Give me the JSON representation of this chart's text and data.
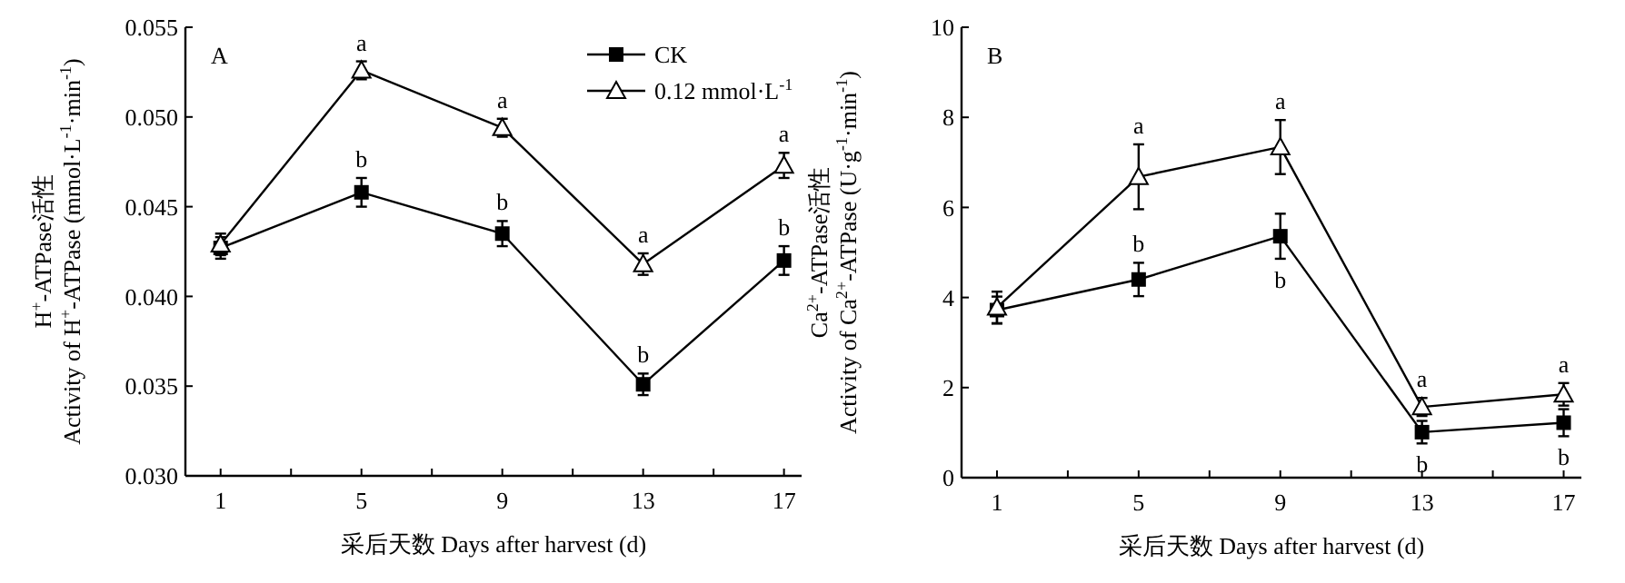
{
  "chart_data": [
    {
      "type": "line",
      "xlabel": "采后天数 Days after harvest (d)",
      "ylabel": "H$^{+}$-ATPase活性\nActivity of H$^{+}$-ATPase (mmol·L$^{-1}$·min$^{-1}$)",
      "x": [
        1,
        5,
        9,
        13,
        17
      ],
      "xlim": [
        0,
        17.5
      ],
      "xticks": [
        1,
        {
          "value": 3,
          "label": null
        },
        5,
        {
          "value": 7,
          "label": null
        },
        9,
        {
          "value": 11,
          "label": null
        },
        13,
        {
          "value": 15,
          "label": null
        },
        17
      ],
      "ylim": [
        0.03,
        0.055
      ],
      "yticks": [
        {
          "value": 0.03,
          "label": "0.030"
        },
        {
          "value": 0.035,
          "label": "0.035"
        },
        {
          "value": 0.04,
          "label": "0.040"
        },
        {
          "value": 0.045,
          "label": "0.045"
        },
        {
          "value": 0.05,
          "label": "0.050"
        },
        {
          "value": 0.055,
          "label": "0.055"
        }
      ],
      "grid": false,
      "legend": "top right",
      "series": [
        {
          "name": "CK",
          "color": "#000000",
          "marker": "square",
          "values": [
            0.0427,
            0.0458,
            0.0435,
            0.0351,
            0.042
          ],
          "errors": [
            0.0006,
            0.0008,
            0.0007,
            0.0006,
            0.0008
          ]
        },
        {
          "name": "0.12 mmol·L$^{-1}$",
          "color": "#000000",
          "marker": "triangle",
          "values": [
            0.0429,
            0.0526,
            0.0494,
            0.0418,
            0.0473
          ],
          "errors": [
            0.0006,
            0.0005,
            0.0005,
            0.0006,
            0.0007
          ]
        }
      ],
      "annotations": [
        "A",
        {
          "text": "b",
          "x": 5,
          "y": 0.0458
        },
        {
          "text": "a",
          "x": 5,
          "y": 0.0526
        },
        {
          "text": "b",
          "x": 9,
          "y": 0.0435
        },
        {
          "text": "a",
          "x": 9,
          "y": 0.0494
        },
        {
          "text": "b",
          "x": 13,
          "y": 0.0351
        },
        {
          "text": "a",
          "x": 13,
          "y": 0.0418
        },
        {
          "text": "b",
          "x": 17,
          "y": 0.042
        },
        {
          "text": "a",
          "x": 17,
          "y": 0.0473
        }
      ]
    },
    {
      "type": "line",
      "xlabel": "采后天数 Days after harvest (d)",
      "ylabel": "Ca$^{2+}$-ATPase活性\nActivity of Ca$^{2+}$-ATPase (U·g$^{-1}$·min$^{-1}$)",
      "x": [
        1,
        5,
        9,
        13,
        17
      ],
      "xlim": [
        0,
        17.5
      ],
      "xticks": [
        1,
        {
          "value": 3,
          "label": null
        },
        5,
        {
          "value": 7,
          "label": null
        },
        9,
        {
          "value": 11,
          "label": null
        },
        13,
        {
          "value": 15,
          "label": null
        },
        17
      ],
      "ylim": [
        0,
        10
      ],
      "yticks": [
        0,
        2,
        4,
        6,
        8,
        10
      ],
      "grid": false,
      "legend": false,
      "series": [
        {
          "color": "#000000",
          "marker": "square",
          "values": [
            3.72,
            4.4,
            5.36,
            1.01,
            1.22
          ],
          "errors": [
            0.3,
            0.37,
            0.5,
            0.25,
            0.3
          ]
        },
        {
          "color": "#000000",
          "marker": "triangle",
          "values": [
            3.78,
            6.68,
            7.34,
            1.57,
            1.85
          ],
          "errors": [
            0.35,
            0.72,
            0.6,
            0.2,
            0.25
          ]
        }
      ],
      "annotations": [
        "B",
        {
          "text": "b",
          "x": 5,
          "y": 4.4
        },
        {
          "text": "a",
          "x": 5,
          "y": 6.68
        },
        {
          "text": "b",
          "x": 9,
          "y": 5.36
        },
        {
          "text": "a",
          "x": 9,
          "y": 7.34
        },
        {
          "text": "b",
          "x": 13,
          "y": 1.01
        },
        {
          "text": "a",
          "x": 13,
          "y": 1.57
        },
        {
          "text": "b",
          "x": 17,
          "y": 1.22
        },
        {
          "text": "a",
          "x": 17,
          "y": 1.85
        }
      ]
    }
  ]
}
